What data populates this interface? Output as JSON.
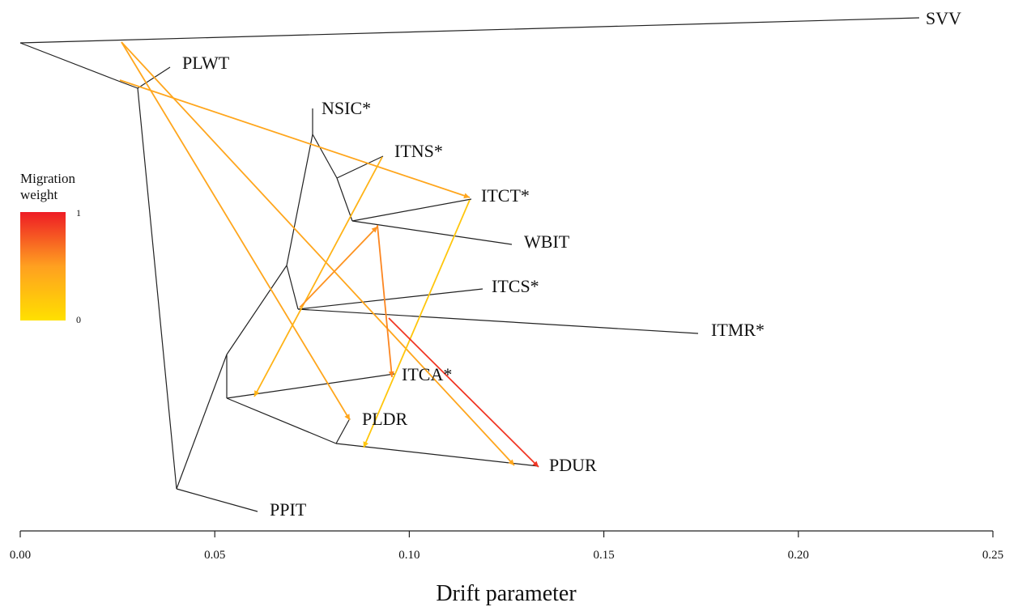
{
  "chart_data": {
    "type": "tree",
    "xlabel": "Drift parameter",
    "xlim": [
      0.0,
      0.25
    ],
    "x_ticks": [
      "0.00",
      "0.05",
      "0.10",
      "0.15",
      "0.20",
      "0.25"
    ],
    "legend": {
      "title_line1": "Migration",
      "title_line2": "weight",
      "max_label": "1",
      "min_label": "0",
      "color_low": "#ffe000",
      "color_mid": "#ffa020",
      "color_high": "#ee1c25"
    },
    "leaves": [
      {
        "name": "SVV",
        "drift": 0.231
      },
      {
        "name": "PLWT",
        "drift": 0.035
      },
      {
        "name": "NSIC*",
        "drift": 0.075
      },
      {
        "name": "ITNS*",
        "drift": 0.093
      },
      {
        "name": "ITCT*",
        "drift": 0.116
      },
      {
        "name": "WBIT",
        "drift": 0.127
      },
      {
        "name": "ITCS*",
        "drift": 0.118
      },
      {
        "name": "ITMR*",
        "drift": 0.174
      },
      {
        "name": "ITCA*",
        "drift": 0.095
      },
      {
        "name": "PLDR",
        "drift": 0.085
      },
      {
        "name": "PDUR",
        "drift": 0.133
      },
      {
        "name": "PPIT",
        "drift": 0.061
      }
    ],
    "migration_edges": [
      {
        "from_branch": "PLWT-SVV branch",
        "to": "PDUR",
        "weight": 0.45
      },
      {
        "from_branch": "PLWT-SVV branch",
        "to": "PLDR",
        "weight": 0.45
      },
      {
        "from_branch": "PLWT branch",
        "to": "ITCT*",
        "weight": 0.45
      },
      {
        "from_branch": "ITNS* branch",
        "to": "ITCS* ancestor",
        "weight": 0.35
      },
      {
        "from_branch": "ITCT* branch",
        "to": "PLDR branch",
        "weight": 0.2
      },
      {
        "from_branch": "ITCT*/WBIT ancestor",
        "to": "ITCA*",
        "weight": 0.6
      },
      {
        "from_branch": "ITCS* ancestor",
        "to": "WBIT branch",
        "weight": 0.55
      },
      {
        "from_branch": "ITMR* branch",
        "to": "PDUR",
        "weight": 0.9
      }
    ]
  }
}
